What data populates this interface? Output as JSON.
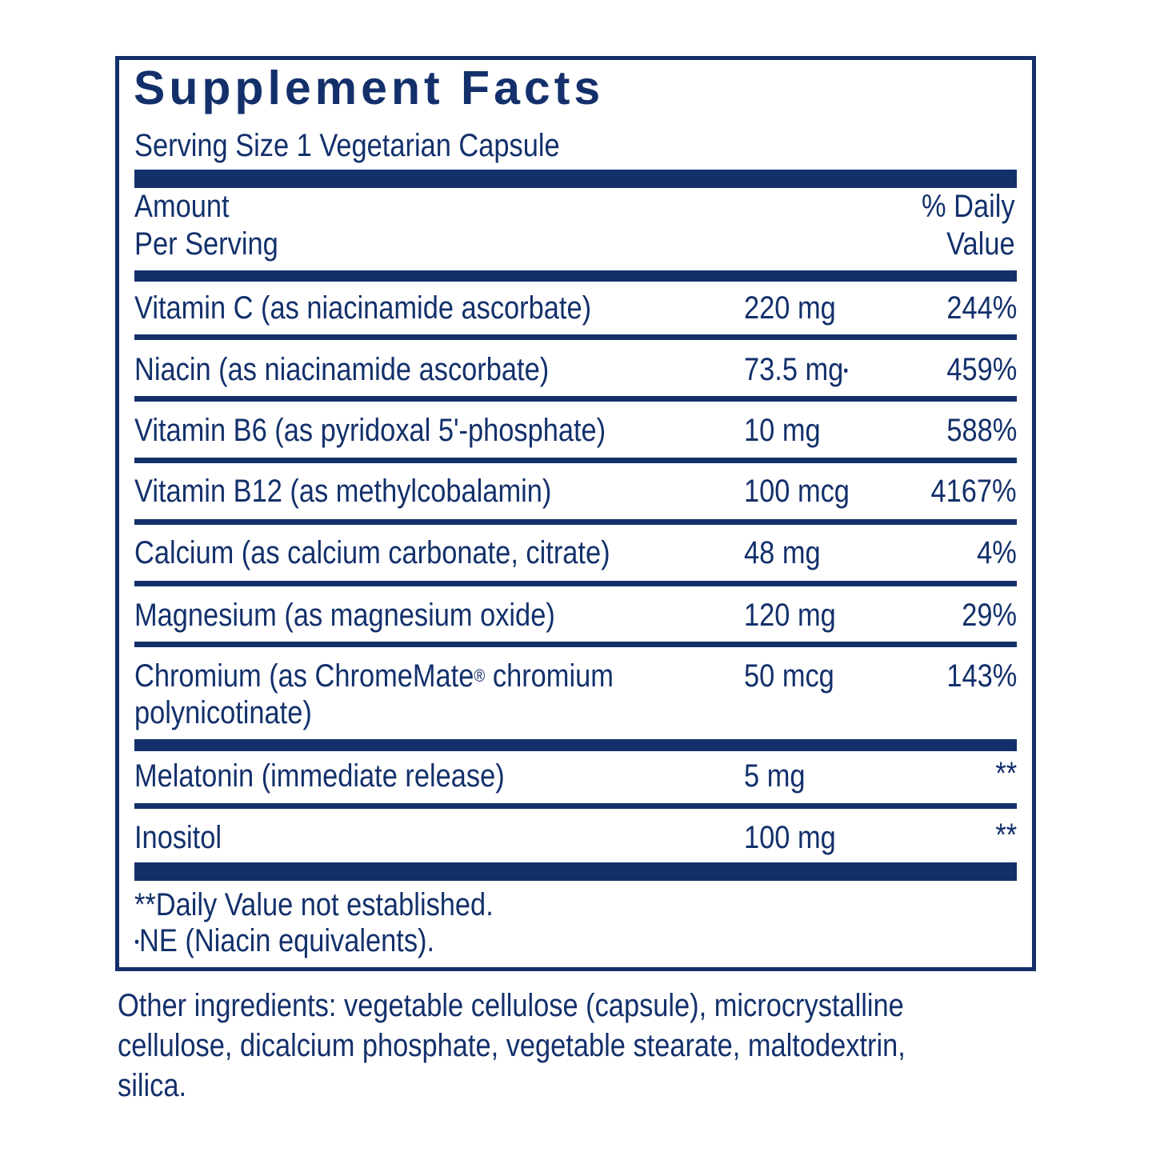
{
  "title": "Supplement Facts",
  "serving_size": "Serving Size 1 Vegetarian Capsule",
  "header": {
    "amount_line1": "Amount",
    "amount_line2": "Per Serving",
    "dv_line1": "% Daily",
    "dv_line2": "Value"
  },
  "rows": [
    {
      "name": "Vitamin C (as niacinamide ascorbate)",
      "amount": "220 mg",
      "dv": "244%"
    },
    {
      "name": "Niacin (as niacinamide ascorbate)",
      "amount": "73.5 mg",
      "amount_mark": "•",
      "dv": "459%"
    },
    {
      "name": "Vitamin B6 (as pyridoxal 5'-phosphate)",
      "amount": "10 mg",
      "dv": "588%"
    },
    {
      "name": "Vitamin B12 (as methylcobalamin)",
      "amount": "100 mcg",
      "dv": "4167%"
    },
    {
      "name": "Calcium (as calcium carbonate, citrate)",
      "amount": "48 mg",
      "dv": "4%"
    },
    {
      "name": "Magnesium (as magnesium oxide)",
      "amount": "120 mg",
      "dv": "29%"
    },
    {
      "name_part1": "Chromium (as ChromeMate",
      "name_reg": "®",
      "name_part2": " chromium",
      "name_line2": "polynicotinate)",
      "amount": "50 mcg",
      "dv": "143%"
    },
    {
      "name": "Melatonin (immediate release)",
      "amount": "5 mg",
      "dv": "**"
    },
    {
      "name": "Inositol",
      "amount": "100 mg",
      "dv": "**"
    }
  ],
  "footnotes": {
    "dv_note": "**Daily Value not established.",
    "ne_mark": "•",
    "ne_note": "NE (Niacin equivalents)."
  },
  "other_ingredients": {
    "line1": "Other ingredients: vegetable cellulose (capsule), microcrystalline",
    "line2": "cellulose, dicalcium phosphate, vegetable stearate, maltodextrin,",
    "line3": "silica."
  },
  "colors": {
    "ink": "#13306b",
    "background": "#ffffff"
  }
}
